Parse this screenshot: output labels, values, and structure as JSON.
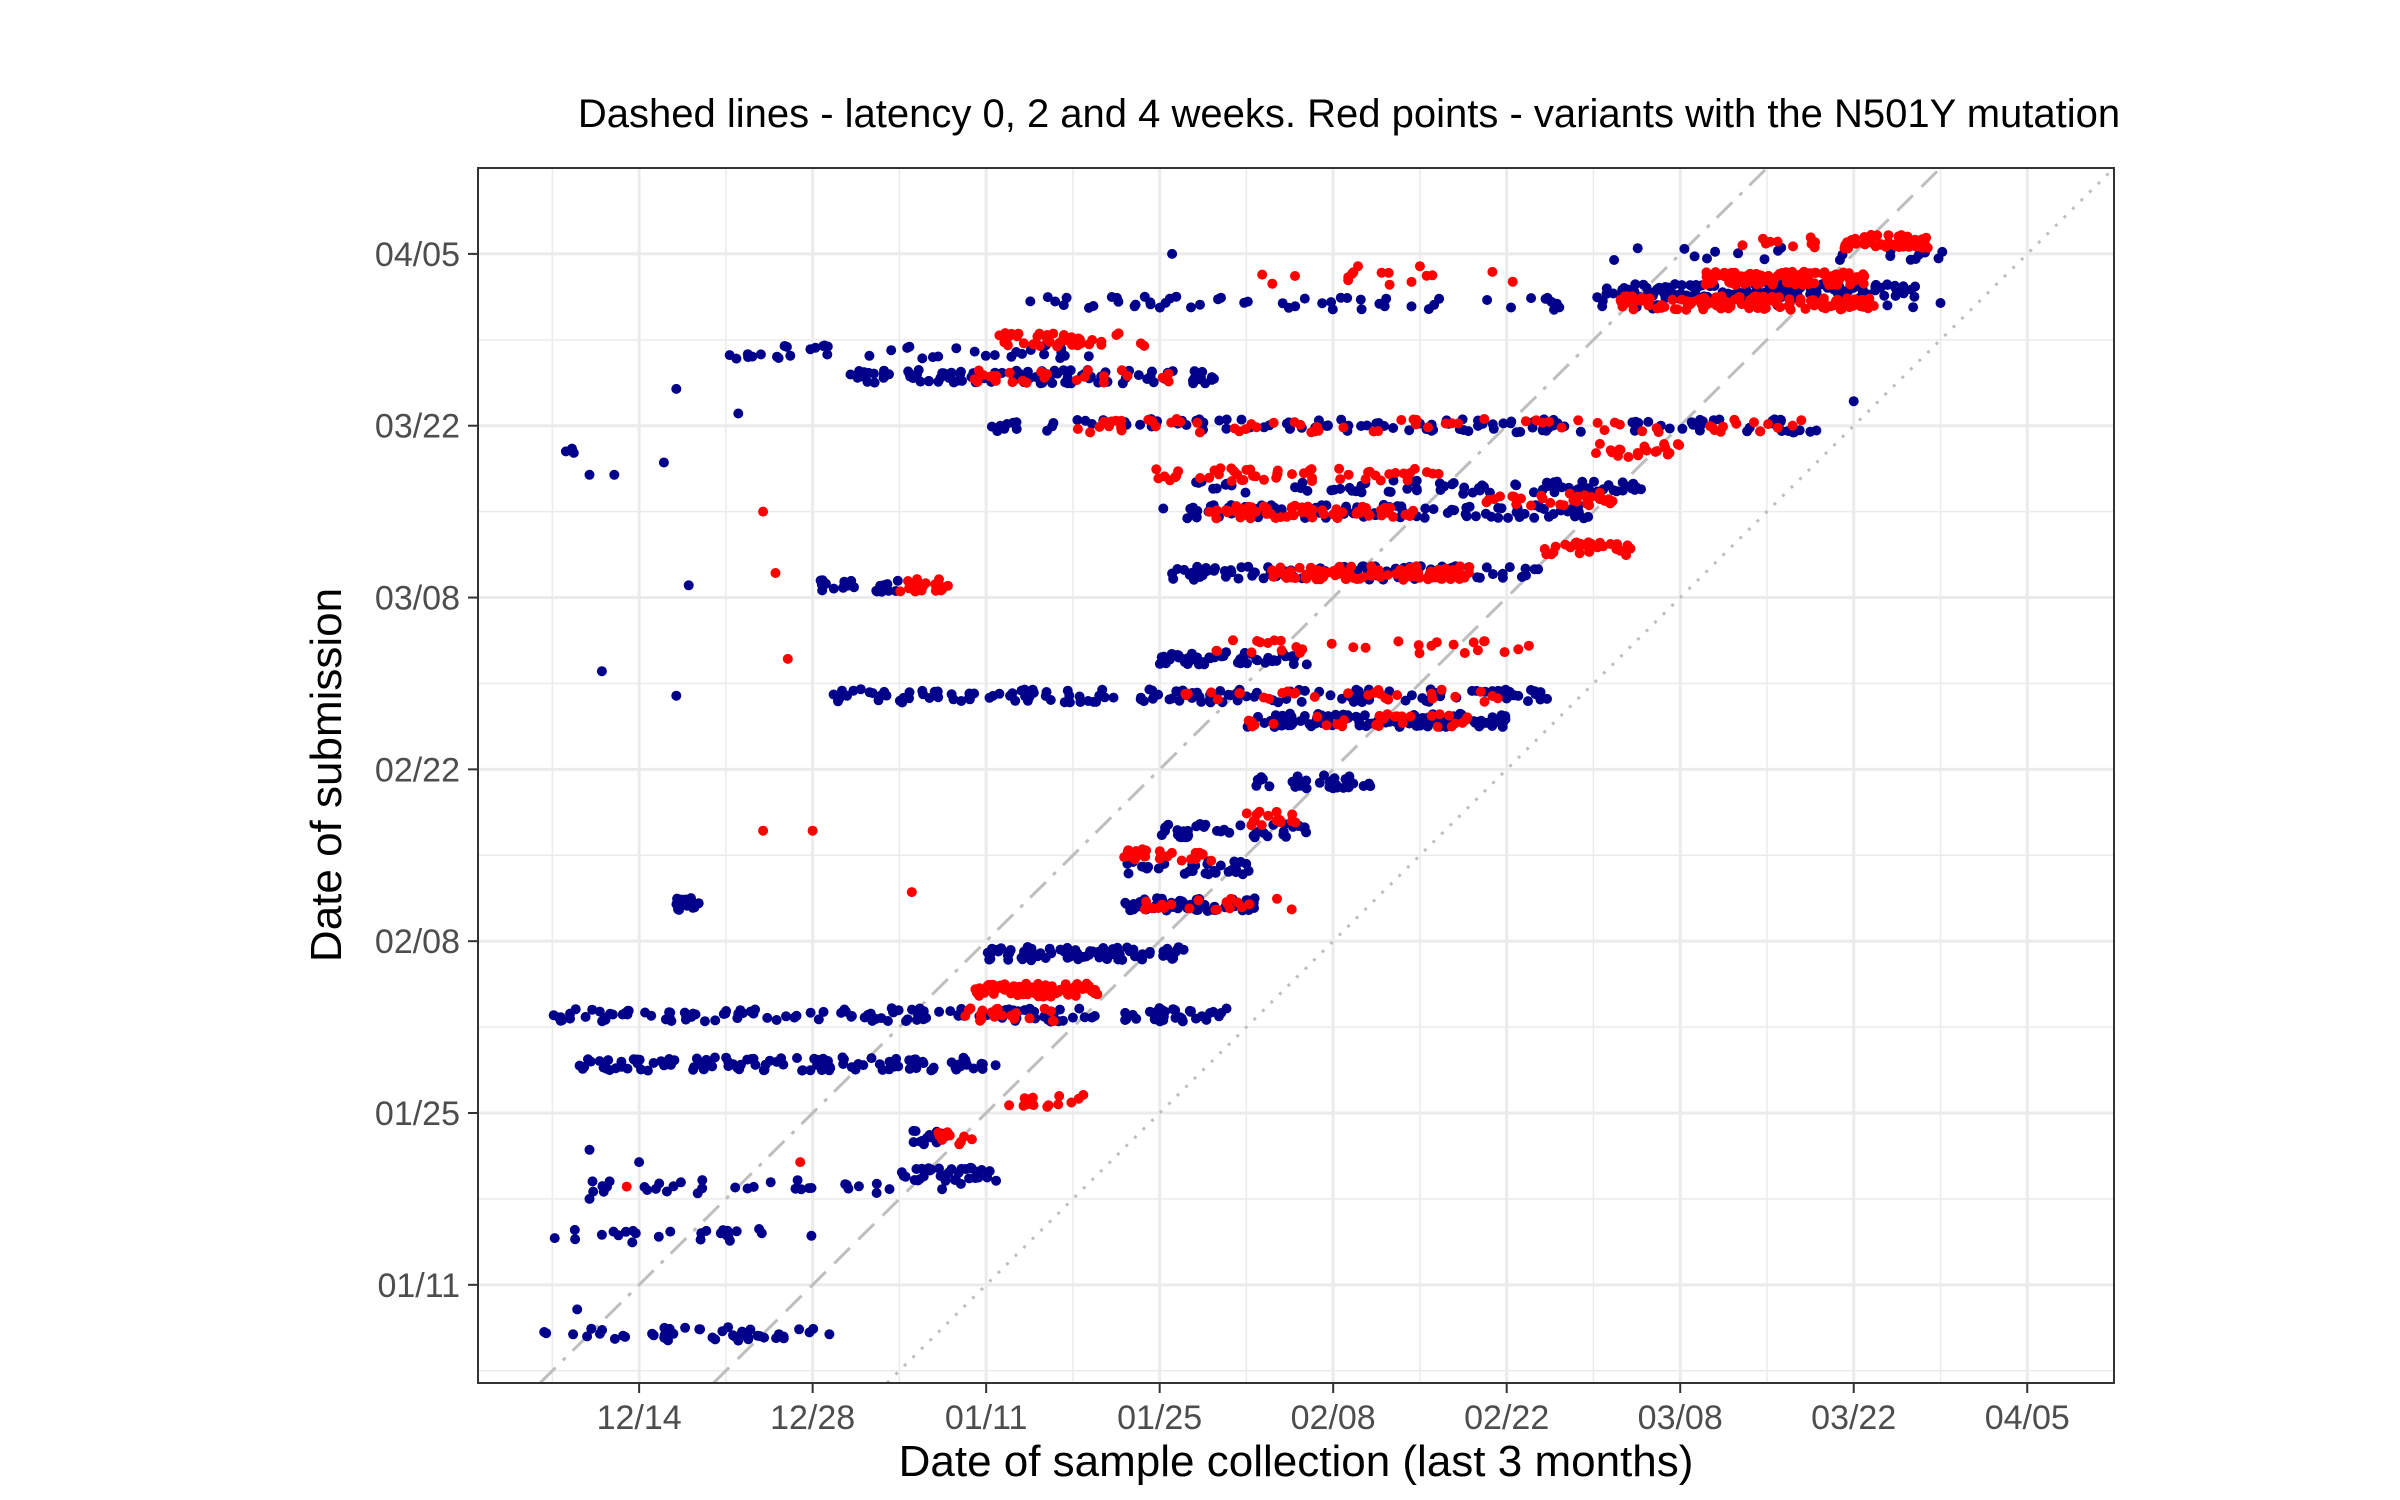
{
  "chart_data": {
    "type": "scatter",
    "title": "Dashed lines - latency 0, 2 and 4 weeks. Red points - variants with the N501Y mutation",
    "xlabel": "Date of sample collection (last 3 months)",
    "ylabel": "Date of submission",
    "x_ticks": [
      "12/14",
      "12/28",
      "01/11",
      "01/25",
      "02/08",
      "02/22",
      "03/08",
      "03/22",
      "04/05"
    ],
    "y_ticks": [
      "01/11",
      "01/25",
      "02/08",
      "02/22",
      "03/08",
      "03/22",
      "04/05"
    ],
    "xlim": [
      "2020-12-01",
      "2021-04-12"
    ],
    "ylim": [
      "2021-01-03",
      "2021-04-12"
    ],
    "grid": true,
    "colors": {
      "other": "#00008b",
      "n501y": "#ff0000",
      "reference_lines": "#bebebe",
      "grid": "#ebebeb",
      "panel_border": "#333333"
    },
    "reference_lines": [
      {
        "latency_weeks": 0,
        "style": "dotted"
      },
      {
        "latency_weeks": 2,
        "style": "dashed"
      },
      {
        "latency_weeks": 4,
        "style": "dotdash"
      }
    ],
    "series": [
      {
        "color": "#00008b",
        "clusters": [
          {
            "y": "2021-01-07",
            "x_from": "2020-12-06",
            "x_to": "2020-12-30",
            "n": 45
          },
          {
            "y": "2021-01-15",
            "x_from": "2020-12-07",
            "x_to": "2020-12-28",
            "n": 25
          },
          {
            "y": "2021-01-19",
            "x_from": "2020-12-07",
            "x_to": "2021-01-10",
            "n": 35
          },
          {
            "y": "2021-01-20",
            "x_from": "2021-01-04",
            "x_to": "2021-01-12",
            "n": 35
          },
          {
            "y": "2021-01-23",
            "x_from": "2021-01-05",
            "x_to": "2021-01-08",
            "n": 25
          },
          {
            "y": "2021-01-29",
            "x_from": "2020-12-09",
            "x_to": "2021-01-12",
            "n": 110
          },
          {
            "y": "2021-02-02",
            "x_from": "2020-12-07",
            "x_to": "2021-01-31",
            "n": 150
          },
          {
            "y": "2021-02-07",
            "x_from": "2021-01-11",
            "x_to": "2021-01-27",
            "n": 90
          },
          {
            "y": "2021-02-11",
            "x_from": "2020-12-17",
            "x_to": "2020-12-19",
            "n": 15
          },
          {
            "y": "2021-02-11",
            "x_from": "2021-01-22",
            "x_to": "2021-02-02",
            "n": 60
          },
          {
            "y": "2021-02-14",
            "x_from": "2021-01-22",
            "x_to": "2021-02-02",
            "n": 30
          },
          {
            "y": "2021-02-17",
            "x_from": "2021-01-25",
            "x_to": "2021-02-06",
            "n": 40
          },
          {
            "y": "2021-02-21",
            "x_from": "2021-02-01",
            "x_to": "2021-02-11",
            "n": 35
          },
          {
            "y": "2021-02-26",
            "x_from": "2021-02-01",
            "x_to": "2021-02-22",
            "n": 110
          },
          {
            "y": "2021-02-28",
            "x_from": "2020-12-29",
            "x_to": "2021-02-26",
            "n": 150
          },
          {
            "y": "2021-03-03",
            "x_from": "2021-01-25",
            "x_to": "2021-02-06",
            "n": 50
          },
          {
            "y": "2021-03-09",
            "x_from": "2020-12-28",
            "x_to": "2021-01-04",
            "n": 20
          },
          {
            "y": "2021-03-10",
            "x_from": "2021-01-26",
            "x_to": "2021-02-25",
            "n": 90
          },
          {
            "y": "2021-03-15",
            "x_from": "2021-01-25",
            "x_to": "2021-03-01",
            "n": 90
          },
          {
            "y": "2021-03-17",
            "x_from": "2021-01-27",
            "x_to": "2021-03-05",
            "n": 80
          },
          {
            "y": "2021-03-22",
            "x_from": "2021-01-11",
            "x_to": "2021-03-19",
            "n": 130
          },
          {
            "y": "2021-03-26",
            "x_from": "2020-12-31",
            "x_to": "2021-01-30",
            "n": 110
          },
          {
            "y": "2021-03-28",
            "x_from": "2020-12-20",
            "x_to": "2021-01-20",
            "n": 40
          },
          {
            "y": "2021-04-01",
            "x_from": "2021-01-12",
            "x_to": "2021-03-27",
            "n": 70
          },
          {
            "y": "2021-04-02",
            "x_from": "2021-03-02",
            "x_to": "2021-03-27",
            "n": 120
          },
          {
            "y": "2021-04-05",
            "x_from": "2021-03-01",
            "x_to": "2021-03-30",
            "n": 20
          },
          {
            "y": "2021-03-20",
            "x_from": "2020-12-07",
            "x_to": "2020-12-09",
            "n": 3
          }
        ],
        "points": [
          {
            "x": "2020-12-10",
            "y": "2021-01-22"
          },
          {
            "x": "2020-12-10",
            "y": "2021-01-18"
          },
          {
            "x": "2020-12-09",
            "y": "2021-01-09"
          },
          {
            "x": "2020-12-10",
            "y": "2021-03-18"
          },
          {
            "x": "2020-12-12",
            "y": "2021-03-18"
          },
          {
            "x": "2020-12-11",
            "y": "2021-03-02"
          },
          {
            "x": "2020-12-17",
            "y": "2021-02-28"
          },
          {
            "x": "2020-12-16",
            "y": "2021-03-19"
          },
          {
            "x": "2020-12-17",
            "y": "2021-03-25"
          },
          {
            "x": "2020-12-22",
            "y": "2021-03-23"
          },
          {
            "x": "2020-12-14",
            "y": "2021-01-21"
          },
          {
            "x": "2020-12-18",
            "y": "2021-03-09"
          },
          {
            "x": "2021-01-26",
            "y": "2021-04-05"
          },
          {
            "x": "2021-03-29",
            "y": "2021-04-01"
          },
          {
            "x": "2021-03-22",
            "y": "2021-03-24"
          },
          {
            "x": "2021-03-27",
            "y": "2021-04-06"
          }
        ]
      },
      {
        "name": "N501Y",
        "color": "#ff0000",
        "clusters": [
          {
            "y": "2021-02-04",
            "x_from": "2021-01-10",
            "x_to": "2021-01-20",
            "n": 70
          },
          {
            "y": "2021-02-02",
            "x_from": "2021-01-09",
            "x_to": "2021-01-17",
            "n": 20
          },
          {
            "y": "2021-01-26",
            "x_from": "2021-01-12",
            "x_to": "2021-01-19",
            "n": 15
          },
          {
            "y": "2021-01-23",
            "x_from": "2021-01-07",
            "x_to": "2021-01-10",
            "n": 10
          },
          {
            "y": "2021-02-15",
            "x_from": "2021-01-22",
            "x_to": "2021-01-30",
            "n": 25
          },
          {
            "y": "2021-02-11",
            "x_from": "2021-01-23",
            "x_to": "2021-02-05",
            "n": 20
          },
          {
            "y": "2021-02-18",
            "x_from": "2021-02-01",
            "x_to": "2021-02-05",
            "n": 15
          },
          {
            "y": "2021-02-26",
            "x_from": "2021-02-01",
            "x_to": "2021-02-19",
            "n": 30
          },
          {
            "y": "2021-02-28",
            "x_from": "2021-01-27",
            "x_to": "2021-02-22",
            "n": 30
          },
          {
            "y": "2021-03-04",
            "x_from": "2021-01-29",
            "x_to": "2021-02-24",
            "n": 30
          },
          {
            "y": "2021-03-10",
            "x_from": "2021-02-03",
            "x_to": "2021-02-19",
            "n": 100
          },
          {
            "y": "2021-03-15",
            "x_from": "2021-01-29",
            "x_to": "2021-02-15",
            "n": 60
          },
          {
            "y": "2021-03-18",
            "x_from": "2021-01-24",
            "x_to": "2021-02-17",
            "n": 50
          },
          {
            "y": "2021-03-12",
            "x_from": "2021-02-25",
            "x_to": "2021-03-04",
            "n": 30
          },
          {
            "y": "2021-03-16",
            "x_from": "2021-02-20",
            "x_to": "2021-03-03",
            "n": 30
          },
          {
            "y": "2021-03-22",
            "x_from": "2021-01-18",
            "x_to": "2021-03-20",
            "n": 70
          },
          {
            "y": "2021-03-20",
            "x_from": "2021-03-01",
            "x_to": "2021-03-08",
            "n": 20
          },
          {
            "y": "2021-03-09",
            "x_from": "2021-01-04",
            "x_to": "2021-01-08",
            "n": 20
          },
          {
            "y": "2021-04-01",
            "x_from": "2021-03-03",
            "x_to": "2021-03-24",
            "n": 120
          },
          {
            "y": "2021-04-03",
            "x_from": "2021-03-10",
            "x_to": "2021-03-23",
            "n": 120
          },
          {
            "y": "2021-04-06",
            "x_from": "2021-03-21",
            "x_to": "2021-03-28",
            "n": 50
          },
          {
            "y": "2021-04-06",
            "x_from": "2021-03-13",
            "x_to": "2021-03-19",
            "n": 10
          },
          {
            "y": "2021-03-29",
            "x_from": "2021-01-12",
            "x_to": "2021-01-24",
            "n": 40
          },
          {
            "y": "2021-03-26",
            "x_from": "2021-01-10",
            "x_to": "2021-01-26",
            "n": 25
          },
          {
            "y": "2021-04-03",
            "x_from": "2021-02-01",
            "x_to": "2021-02-25",
            "n": 15
          }
        ],
        "points": [
          {
            "x": "2020-12-24",
            "y": "2021-03-15"
          },
          {
            "x": "2020-12-25",
            "y": "2021-03-10"
          },
          {
            "x": "2020-12-26",
            "y": "2021-03-03"
          },
          {
            "x": "2020-12-24",
            "y": "2021-02-17"
          },
          {
            "x": "2020-12-28",
            "y": "2021-02-17"
          },
          {
            "x": "2020-12-13",
            "y": "2021-01-19"
          },
          {
            "x": "2021-01-05",
            "y": "2021-02-12"
          },
          {
            "x": "2020-12-27",
            "y": "2021-01-21"
          },
          {
            "x": "2021-02-10",
            "y": "2021-04-04"
          },
          {
            "x": "2021-02-15",
            "y": "2021-04-04"
          }
        ]
      }
    ]
  }
}
